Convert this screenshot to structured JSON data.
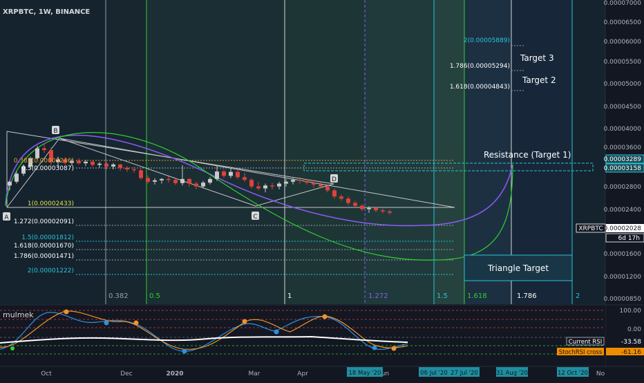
{
  "header": {
    "symbol_title": "XRPBTC, 1W, BINANCE"
  },
  "indicator": {
    "name": "mulmek",
    "labels": [
      "Current RSI",
      "StochRSI cross"
    ],
    "values": [
      "-33.58",
      "-61.16"
    ],
    "scale": [
      "100.00",
      "0.00"
    ]
  },
  "colors": {
    "bg": "#131722",
    "fib_line": "#9aa0aa",
    "cyan": "#27c6d6",
    "green": "#2fd02f",
    "purple": "#8b5cf6",
    "up_candle": "#c9c9c9",
    "down_candle": "#e0413b",
    "triangle_line": "#c8c8c8"
  },
  "chart_data": {
    "type": "candlestick",
    "scale": "log",
    "price_axis": [
      "0.00007000",
      "0.00006500",
      "0.00006000",
      "0.00005500",
      "0.00005000",
      "0.00004500",
      "0.00004000",
      "0.00003600",
      "0.00003289",
      "0.00003158",
      "0.00002800",
      "0.00002400",
      "0.00002028",
      "0.00001600",
      "0.00001200",
      "0.00000850"
    ],
    "last_price": {
      "label": "XRPBTC",
      "value": "0.00002028",
      "countdown": "6d 17h"
    },
    "time_axis": [
      "Oct",
      "Dec",
      "2020",
      "Mar",
      "Apr",
      "Jun",
      "No"
    ],
    "date_markers": [
      "18 May '20",
      "06 Jul '20",
      "27 Jul '20",
      "31 Aug '20",
      "12 Oct '20"
    ],
    "fib_time_labels": [
      "0.382",
      "0.5",
      "1",
      "1.272",
      "1.5",
      "1.618",
      "1.786",
      "2"
    ],
    "fib_levels": [
      {
        "label": "0.382(0.00003246)",
        "color": "#e0a030"
      },
      {
        "label": "0.5(0.00003087)",
        "color": "#ffffff"
      },
      {
        "label": "1(0.00002433)",
        "color": "#e6e64a"
      },
      {
        "label": "1.272(0.00002091)",
        "color": "#ffffff"
      },
      {
        "label": "1.5(0.00001812)",
        "color": "#27c6d6"
      },
      {
        "label": "1.618(0.00001670)",
        "color": "#ffffff"
      },
      {
        "label": "1.786(0.00001471)",
        "color": "#ffffff"
      },
      {
        "label": "2(0.00001222)",
        "color": "#27c6d6"
      }
    ],
    "extension_levels": [
      {
        "label": "2(0.00005889)",
        "color": "#27c6d6"
      },
      {
        "label": "1.786(0.00005294)",
        "color": "#ffffff"
      },
      {
        "label": "1.618(0.00004843)",
        "color": "#ffffff"
      }
    ],
    "annotations": [
      "Target 3",
      "Target 2",
      "Resistance (Target 1)",
      "Triangle Target"
    ],
    "pattern_points": [
      "A",
      "B",
      "C",
      "D"
    ],
    "candles": [
      {
        "o": 2.54e-05,
        "h": 2.65e-05,
        "l": 2.44e-05,
        "c": 2.62e-05
      },
      {
        "o": 2.62e-05,
        "h": 2.85e-05,
        "l": 2.58e-05,
        "c": 2.8e-05
      },
      {
        "o": 2.8e-05,
        "h": 3.02e-05,
        "l": 2.75e-05,
        "c": 2.97e-05
      },
      {
        "o": 2.97e-05,
        "h": 3.22e-05,
        "l": 2.92e-05,
        "c": 3.18e-05
      },
      {
        "o": 3.18e-05,
        "h": 3.52e-05,
        "l": 3.12e-05,
        "c": 3.45e-05
      },
      {
        "o": 3.45e-05,
        "h": 3.6e-05,
        "l": 3.32e-05,
        "c": 3.4e-05
      },
      {
        "o": 3.4e-05,
        "h": 3.48e-05,
        "l": 3e-05,
        "c": 3.08e-05
      },
      {
        "o": 3.08e-05,
        "h": 3.22e-05,
        "l": 2.96e-05,
        "c": 3.15e-05
      },
      {
        "o": 3.15e-05,
        "h": 3.2e-05,
        "l": 3.02e-05,
        "c": 3.06e-05
      },
      {
        "o": 3.06e-05,
        "h": 3.16e-05,
        "l": 3e-05,
        "c": 3.11e-05
      },
      {
        "o": 3.11e-05,
        "h": 3.18e-05,
        "l": 3.02e-05,
        "c": 3.05e-05
      },
      {
        "o": 3.05e-05,
        "h": 3.14e-05,
        "l": 2.98e-05,
        "c": 3.09e-05
      },
      {
        "o": 3.09e-05,
        "h": 3.12e-05,
        "l": 2.96e-05,
        "c": 3.01e-05
      },
      {
        "o": 3.01e-05,
        "h": 3.08e-05,
        "l": 2.94e-05,
        "c": 3.04e-05
      },
      {
        "o": 3.04e-05,
        "h": 3.08e-05,
        "l": 2.9e-05,
        "c": 2.97e-05
      },
      {
        "o": 2.97e-05,
        "h": 3.06e-05,
        "l": 2.9e-05,
        "c": 3.02e-05
      },
      {
        "o": 3.02e-05,
        "h": 3.04e-05,
        "l": 2.86e-05,
        "c": 2.94e-05
      },
      {
        "o": 2.94e-05,
        "h": 2.98e-05,
        "l": 2.84e-05,
        "c": 2.9e-05
      },
      {
        "o": 2.9e-05,
        "h": 2.96e-05,
        "l": 2.82e-05,
        "c": 2.88e-05
      },
      {
        "o": 2.88e-05,
        "h": 2.92e-05,
        "l": 2.66e-05,
        "c": 2.7e-05
      },
      {
        "o": 2.7e-05,
        "h": 2.76e-05,
        "l": 2.58e-05,
        "c": 2.62e-05
      },
      {
        "o": 2.62e-05,
        "h": 2.7e-05,
        "l": 2.56e-05,
        "c": 2.65e-05
      },
      {
        "o": 2.65e-05,
        "h": 2.7e-05,
        "l": 2.58e-05,
        "c": 2.68e-05
      },
      {
        "o": 2.68e-05,
        "h": 2.74e-05,
        "l": 2.6e-05,
        "c": 2.66e-05
      },
      {
        "o": 2.66e-05,
        "h": 2.69e-05,
        "l": 2.55e-05,
        "c": 2.59e-05
      },
      {
        "o": 2.59e-05,
        "h": 3e-05,
        "l": 2.54e-05,
        "c": 2.68e-05
      },
      {
        "o": 2.68e-05,
        "h": 2.7e-05,
        "l": 2.52e-05,
        "c": 2.58e-05
      },
      {
        "o": 2.58e-05,
        "h": 2.62e-05,
        "l": 2.46e-05,
        "c": 2.52e-05
      },
      {
        "o": 2.52e-05,
        "h": 2.64e-05,
        "l": 2.48e-05,
        "c": 2.6e-05
      },
      {
        "o": 2.6e-05,
        "h": 2.72e-05,
        "l": 2.56e-05,
        "c": 2.68e-05
      },
      {
        "o": 2.68e-05,
        "h": 2.98e-05,
        "l": 2.64e-05,
        "c": 2.85e-05
      },
      {
        "o": 2.85e-05,
        "h": 2.9e-05,
        "l": 2.7e-05,
        "c": 2.75e-05
      },
      {
        "o": 2.75e-05,
        "h": 2.92e-05,
        "l": 2.7e-05,
        "c": 2.84e-05
      },
      {
        "o": 2.84e-05,
        "h": 2.9e-05,
        "l": 2.68e-05,
        "c": 2.72e-05
      },
      {
        "o": 2.72e-05,
        "h": 2.82e-05,
        "l": 2.62e-05,
        "c": 2.66e-05
      },
      {
        "o": 2.66e-05,
        "h": 2.7e-05,
        "l": 2.48e-05,
        "c": 2.52e-05
      },
      {
        "o": 2.52e-05,
        "h": 2.62e-05,
        "l": 2.44e-05,
        "c": 2.48e-05
      },
      {
        "o": 2.48e-05,
        "h": 2.58e-05,
        "l": 2.4e-05,
        "c": 2.54e-05
      },
      {
        "o": 2.54e-05,
        "h": 2.6e-05,
        "l": 2.46e-05,
        "c": 2.52e-05
      },
      {
        "o": 2.52e-05,
        "h": 2.62e-05,
        "l": 2.46e-05,
        "c": 2.58e-05
      },
      {
        "o": 2.58e-05,
        "h": 2.68e-05,
        "l": 2.52e-05,
        "c": 2.62e-05
      },
      {
        "o": 2.62e-05,
        "h": 2.7e-05,
        "l": 2.56e-05,
        "c": 2.66e-05
      },
      {
        "o": 2.66e-05,
        "h": 2.72e-05,
        "l": 2.58e-05,
        "c": 2.64e-05
      },
      {
        "o": 2.64e-05,
        "h": 2.68e-05,
        "l": 2.56e-05,
        "c": 2.6e-05
      },
      {
        "o": 2.6e-05,
        "h": 2.66e-05,
        "l": 2.5e-05,
        "c": 2.56e-05
      },
      {
        "o": 2.56e-05,
        "h": 2.62e-05,
        "l": 2.48e-05,
        "c": 2.52e-05
      },
      {
        "o": 2.52e-05,
        "h": 2.56e-05,
        "l": 2.4e-05,
        "c": 2.44e-05
      },
      {
        "o": 2.44e-05,
        "h": 2.48e-05,
        "l": 2.28e-05,
        "c": 2.32e-05
      },
      {
        "o": 2.32e-05,
        "h": 2.36e-05,
        "l": 2.24e-05,
        "c": 2.28e-05
      },
      {
        "o": 2.28e-05,
        "h": 2.32e-05,
        "l": 2.16e-05,
        "c": 2.2e-05
      },
      {
        "o": 2.2e-05,
        "h": 2.24e-05,
        "l": 2.12e-05,
        "c": 2.15e-05
      },
      {
        "o": 2.15e-05,
        "h": 2.18e-05,
        "l": 2.06e-05,
        "c": 2.09e-05
      },
      {
        "o": 2.09e-05,
        "h": 2.14e-05,
        "l": 2.03e-05,
        "c": 2.11e-05
      },
      {
        "o": 2.11e-05,
        "h": 2.14e-05,
        "l": 2.04e-05,
        "c": 2.07e-05
      },
      {
        "o": 2.07e-05,
        "h": 2.1e-05,
        "l": 2.02e-05,
        "c": 2.05e-05
      },
      {
        "o": 2.05e-05,
        "h": 2.08e-05,
        "l": 2e-05,
        "c": 2.03e-05
      }
    ]
  }
}
